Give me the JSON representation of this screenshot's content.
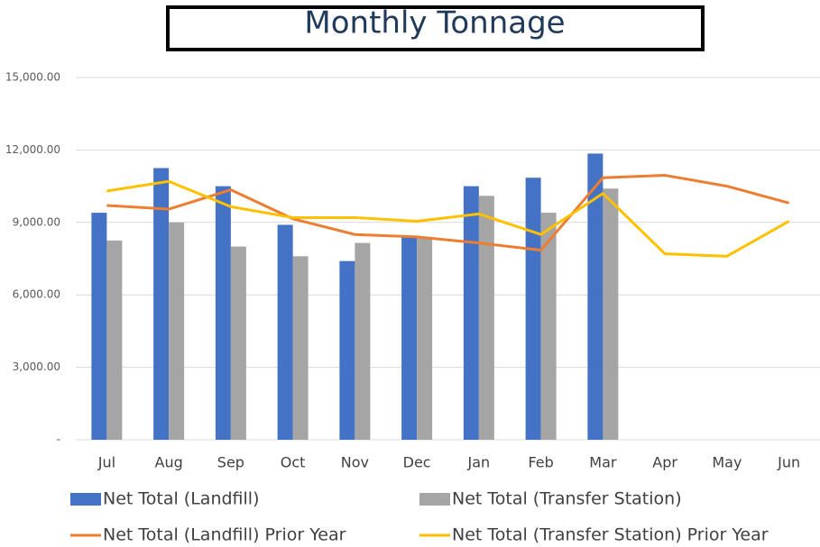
{
  "chart_data": {
    "type": "bar",
    "title": "Monthly Tonnage",
    "categories": [
      "Jul",
      "Aug",
      "Sep",
      "Oct",
      "Nov",
      "Dec",
      "Jan",
      "Feb",
      "Mar",
      "Apr",
      "May",
      "Jun"
    ],
    "series": [
      {
        "name": "Net Total (Landfill)",
        "type": "bar",
        "color": "#4472c4",
        "values": [
          9400,
          11250,
          10500,
          8900,
          7400,
          8450,
          10500,
          10850,
          11850,
          null,
          null,
          null
        ]
      },
      {
        "name": "Net Total (Transfer Station)",
        "type": "bar",
        "color": "#a5a5a5",
        "values": [
          8250,
          9000,
          8000,
          7600,
          8150,
          8400,
          10100,
          9400,
          10400,
          null,
          null,
          null
        ]
      },
      {
        "name": "Net Total (Landfill) Prior Year",
        "type": "line",
        "color": "#ed7d31",
        "values": [
          9700,
          9550,
          10350,
          9150,
          8500,
          8400,
          8150,
          7850,
          10850,
          10950,
          10500,
          9800
        ]
      },
      {
        "name": "Net Total (Transfer Station) Prior Year",
        "type": "line",
        "color": "#ffc000",
        "values": [
          10300,
          10700,
          9650,
          9200,
          9200,
          9050,
          9350,
          8500,
          10200,
          7700,
          7600,
          9050
        ]
      }
    ],
    "ylim": [
      0,
      15000
    ],
    "yticks": [
      {
        "value": 0,
        "label": "-"
      },
      {
        "value": 3000,
        "label": "3,000.00"
      },
      {
        "value": 6000,
        "label": "6,000.00"
      },
      {
        "value": 9000,
        "label": "9,000.00"
      },
      {
        "value": 12000,
        "label": "12,000.00"
      },
      {
        "value": 15000,
        "label": "15,000.00"
      }
    ],
    "grid": true,
    "legend": "bottom"
  }
}
